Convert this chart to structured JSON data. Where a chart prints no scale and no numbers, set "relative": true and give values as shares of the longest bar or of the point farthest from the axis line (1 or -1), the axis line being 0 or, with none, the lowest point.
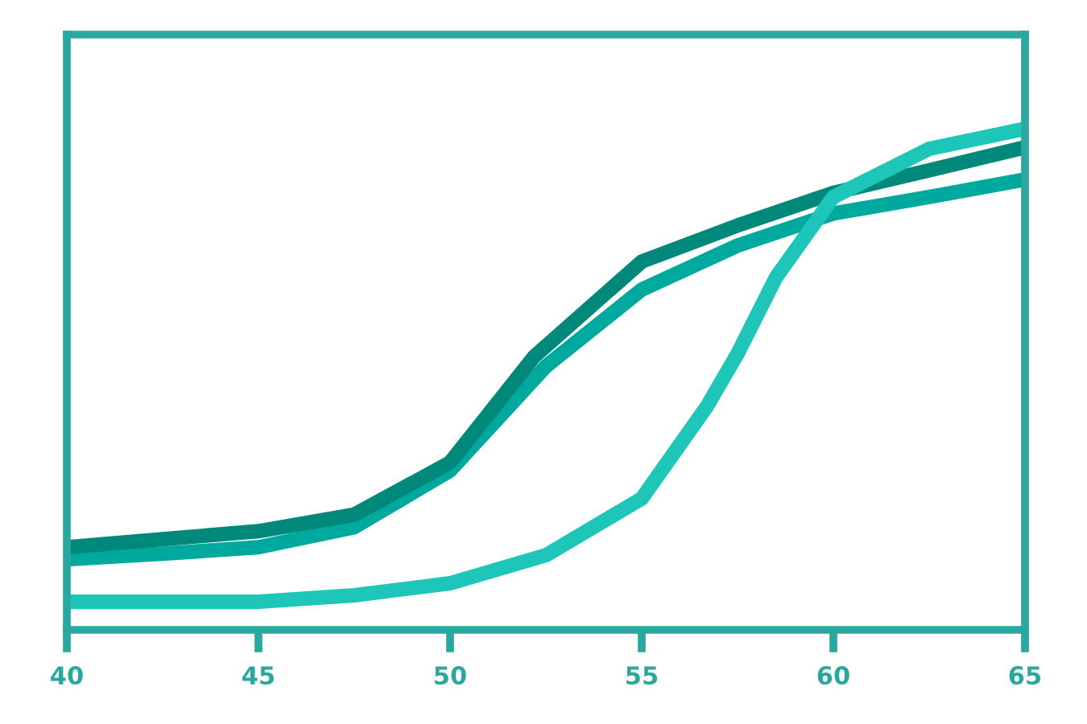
{
  "chart_data": {
    "type": "line",
    "relative": true,
    "xlim": [
      40,
      65
    ],
    "xticks": [
      40,
      45,
      50,
      55,
      60,
      65
    ],
    "grid": false,
    "line_style": "solid",
    "tick_labels": "x",
    "series": [
      {
        "color": "#00a99d",
        "x": [
          40,
          42.5,
          45,
          47.5,
          50,
          52.5,
          55,
          57.5,
          60,
          62.5,
          65
        ],
        "values": [
          0.141,
          0.152,
          0.165,
          0.205,
          0.318,
          0.526,
          0.679,
          0.767,
          0.831,
          0.864,
          0.899
        ]
      },
      {
        "color": "#00897b",
        "x": [
          40,
          42.5,
          45,
          47.5,
          50,
          52.2,
          55,
          57.5,
          60,
          62.5,
          65
        ],
        "values": [
          0.165,
          0.181,
          0.197,
          0.23,
          0.334,
          0.546,
          0.735,
          0.807,
          0.872,
          0.917,
          0.963
        ]
      },
      {
        "color": "#1dc6b8",
        "x": [
          40,
          45,
          47.5,
          50,
          52.5,
          55,
          56.7,
          57.5,
          58.5,
          60,
          62.5,
          65
        ],
        "values": [
          0.056,
          0.056,
          0.069,
          0.093,
          0.149,
          0.262,
          0.446,
          0.551,
          0.703,
          0.864,
          0.96,
          1.0
        ]
      }
    ]
  }
}
